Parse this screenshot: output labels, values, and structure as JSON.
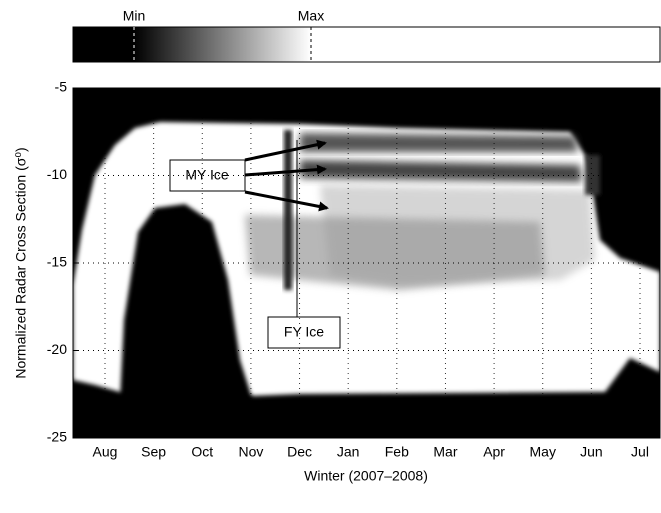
{
  "chart_data": {
    "type": "image",
    "colorbar_labels": [
      "Min",
      "Max"
    ],
    "xlabel": "Winter (2007–2008)",
    "ylabel": "Normalized Radar Cross Section (σ⁰)",
    "categories": [
      "Aug",
      "Sep",
      "Oct",
      "Nov",
      "Dec",
      "Jan",
      "Feb",
      "Mar",
      "Apr",
      "May",
      "Jun",
      "Jul"
    ],
    "ylim": [
      -25,
      -5
    ],
    "yticks": [
      -25,
      -20,
      -15,
      -10,
      -5
    ],
    "grid": true,
    "annotations": [
      "MY Ice",
      "FY Ice"
    ]
  }
}
